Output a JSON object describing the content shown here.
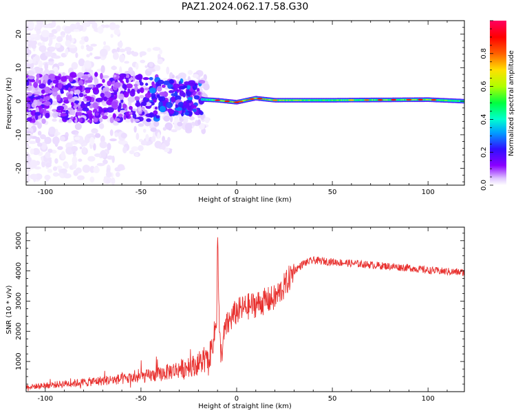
{
  "figure_title": "PAZ1.2024.062.17.58.G30",
  "chart_data": [
    {
      "type": "heatmap",
      "xlabel": "Height of straight line (km)",
      "ylabel": "Frequency (Hz)",
      "xlim": [
        -110,
        119
      ],
      "ylim": [
        -25,
        24
      ],
      "xticks": [
        -100,
        -50,
        0,
        50,
        100
      ],
      "yticks": [
        -20,
        -10,
        0,
        10,
        20
      ],
      "colorbar": {
        "label": "Normalized spectral amplitude",
        "range": [
          0,
          1
        ],
        "ticks": [
          0.0,
          0.2,
          0.4,
          0.6,
          0.8
        ],
        "colormap": [
          "#ffffff",
          "#e0c8ff",
          "#8a00ff",
          "#3010ff",
          "#00a0ff",
          "#00ffd0",
          "#00ff40",
          "#b0ff00",
          "#ffe000",
          "#ff6000",
          "#ff0000",
          "#ff0060"
        ]
      },
      "signal_track": {
        "x": [
          -110,
          -60,
          -40,
          -20,
          -10,
          0,
          10,
          20,
          50,
          100,
          119
        ],
        "freq_center": [
          0,
          0,
          2,
          1,
          0.5,
          -0.5,
          1.5,
          0.5,
          0.5,
          0.8,
          0
        ],
        "amplitude": [
          0.18,
          0.22,
          0.28,
          0.3,
          0.55,
          0.65,
          0.7,
          0.6,
          0.5,
          0.6,
          0.45
        ]
      }
    },
    {
      "type": "line",
      "xlabel": "Height of straight line (km)",
      "ylabel": "SNR (10 * v/v)",
      "xlim": [
        -110,
        119
      ],
      "ylim": [
        0,
        5450
      ],
      "xticks": [
        -100,
        -50,
        0,
        50,
        100
      ],
      "yticks": [
        1000,
        2000,
        3000,
        4000,
        5000
      ],
      "color": "#e8312f",
      "series": [
        {
          "x": [
            -110,
            -100,
            -90,
            -80,
            -70,
            -60,
            -50,
            -40,
            -35,
            -30,
            -25,
            -20,
            -15,
            -12,
            -10.5,
            -10,
            -9,
            -8,
            -6,
            -4,
            -2,
            0,
            5,
            10,
            15,
            20,
            25,
            30,
            35,
            40,
            50,
            60,
            70,
            80,
            90,
            100,
            110,
            119
          ],
          "values": [
            120,
            160,
            210,
            250,
            300,
            340,
            400,
            480,
            560,
            620,
            690,
            760,
            880,
            1800,
            2300,
            5400,
            1800,
            1200,
            2100,
            2300,
            2500,
            2650,
            2800,
            2900,
            3000,
            3100,
            3500,
            4000,
            4250,
            4350,
            4300,
            4250,
            4200,
            4150,
            4100,
            4020,
            3980,
            3950
          ]
        }
      ]
    }
  ]
}
